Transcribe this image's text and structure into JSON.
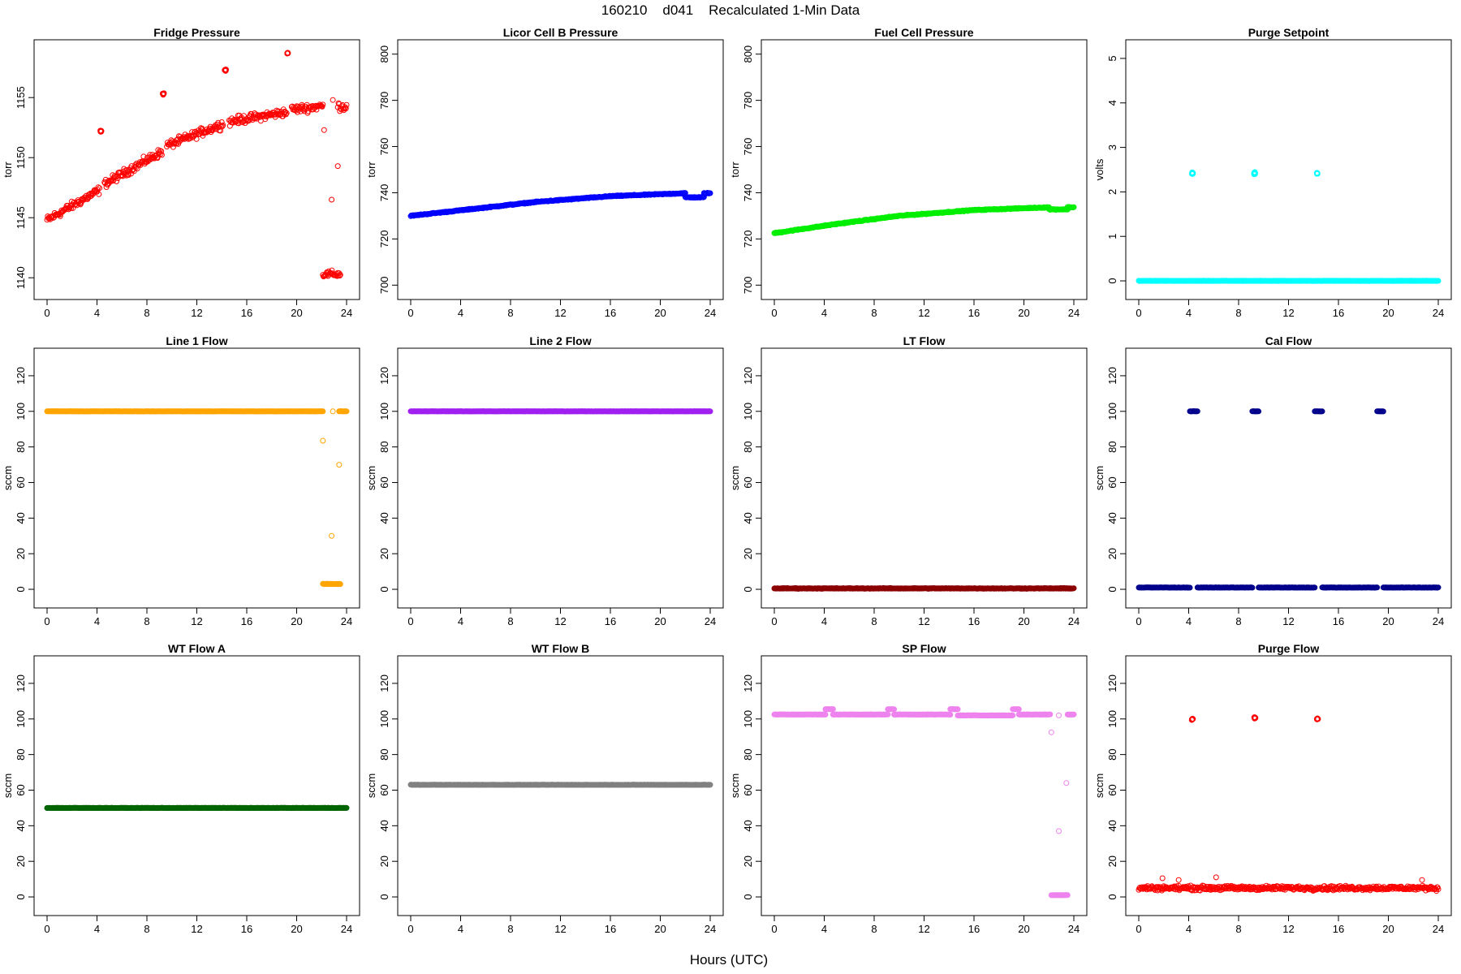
{
  "figure": {
    "title": "160210    d041    Recalculated 1-Min Data",
    "xlabel": "Hours (UTC)"
  },
  "chart_data": [
    {
      "type": "scatter",
      "title": "Fridge Pressure",
      "ylabel": "torr",
      "color": "#ff0000",
      "xlim": [
        0,
        24
      ],
      "ylim": [
        1139,
        1159
      ],
      "xticks": [
        0,
        4,
        8,
        12,
        16,
        20,
        24
      ],
      "yticks": [
        1140,
        1145,
        1150,
        1155
      ],
      "segments": [
        {
          "x": [
            0,
            4.2
          ],
          "y": [
            1144.8,
            1147.3
          ],
          "jitter": 0.5
        },
        {
          "x": [
            4.6,
            9.2
          ],
          "y": [
            1147.8,
            1150.5
          ],
          "jitter": 0.5
        },
        {
          "x": [
            9.6,
            14.1
          ],
          "y": [
            1151,
            1152.8
          ],
          "jitter": 0.5
        },
        {
          "x": [
            14.6,
            19.2
          ],
          "y": [
            1153,
            1153.8
          ],
          "jitter": 0.5
        },
        {
          "x": [
            19.6,
            22.1
          ],
          "y": [
            1154,
            1154.3
          ],
          "jitter": 0.5
        },
        {
          "x": [
            23.3,
            24
          ],
          "y": [
            1154.3,
            1154.2
          ],
          "jitter": 0.5
        },
        {
          "x": [
            22.1,
            23.5
          ],
          "y": [
            1140.3,
            1140.3
          ],
          "jitter": 0.4
        }
      ],
      "clusters": [
        {
          "x": 4.3,
          "y": 1152.2,
          "n": 10
        },
        {
          "x": 9.3,
          "y": 1155.3,
          "n": 10
        },
        {
          "x": 14.3,
          "y": 1157.3,
          "n": 10
        },
        {
          "x": 19.3,
          "y": 1158.7,
          "n": 8
        }
      ],
      "points": [
        [
          22.2,
          1152.3
        ],
        [
          22.8,
          1146.5
        ],
        [
          23.3,
          1149.3
        ],
        [
          22.9,
          1154.8
        ]
      ]
    },
    {
      "type": "scatter",
      "title": "Licor Cell B Pressure",
      "ylabel": "torr",
      "color": "#0000ff",
      "xlim": [
        0,
        24
      ],
      "ylim": [
        698,
        802
      ],
      "xticks": [
        0,
        4,
        8,
        12,
        16,
        20,
        24
      ],
      "yticks": [
        700,
        720,
        740,
        760,
        780,
        800
      ],
      "segments": [
        {
          "x": [
            0,
            5
          ],
          "y": [
            730,
            733
          ],
          "jitter": 0.3
        },
        {
          "x": [
            5,
            10
          ],
          "y": [
            733,
            736
          ],
          "jitter": 0.3
        },
        {
          "x": [
            10,
            16
          ],
          "y": [
            736,
            738.5
          ],
          "jitter": 0.3
        },
        {
          "x": [
            16,
            22
          ],
          "y": [
            738.5,
            739.8
          ],
          "jitter": 0.3
        },
        {
          "x": [
            22,
            23.5
          ],
          "y": [
            738,
            738
          ],
          "jitter": 0.3
        },
        {
          "x": [
            23.5,
            24
          ],
          "y": [
            739.8,
            739.8
          ],
          "jitter": 0.3
        }
      ],
      "clusters": [],
      "points": []
    },
    {
      "type": "scatter",
      "title": "Fuel Cell Pressure",
      "ylabel": "torr",
      "color": "#00ee00",
      "xlim": [
        0,
        24
      ],
      "ylim": [
        698,
        802
      ],
      "xticks": [
        0,
        4,
        8,
        12,
        16,
        20,
        24
      ],
      "yticks": [
        700,
        720,
        740,
        760,
        780,
        800
      ],
      "segments": [
        {
          "x": [
            0,
            5
          ],
          "y": [
            722.5,
            726.5
          ],
          "jitter": 0.3
        },
        {
          "x": [
            5,
            10
          ],
          "y": [
            726.5,
            730
          ],
          "jitter": 0.3
        },
        {
          "x": [
            10,
            16
          ],
          "y": [
            730,
            732.5
          ],
          "jitter": 0.3
        },
        {
          "x": [
            16,
            22
          ],
          "y": [
            732.5,
            733.7
          ],
          "jitter": 0.3
        },
        {
          "x": [
            22,
            23.5
          ],
          "y": [
            732.8,
            732.8
          ],
          "jitter": 0.3
        },
        {
          "x": [
            23.5,
            24
          ],
          "y": [
            733.7,
            733.7
          ],
          "jitter": 0.3
        }
      ],
      "clusters": [],
      "points": []
    },
    {
      "type": "scatter",
      "title": "Purge Setpoint",
      "ylabel": "volts",
      "color": "#00ffff",
      "xlim": [
        0,
        24
      ],
      "ylim": [
        -0.2,
        5.2
      ],
      "xticks": [
        0,
        4,
        8,
        12,
        16,
        20,
        24
      ],
      "yticks": [
        0,
        1,
        2,
        3,
        4,
        5
      ],
      "segments": [
        {
          "x": [
            0,
            24
          ],
          "y": [
            0,
            0
          ],
          "jitter": 0.005
        }
      ],
      "clusters": [
        {
          "x": 4.3,
          "y": 2.42,
          "n": 12
        },
        {
          "x": 9.3,
          "y": 2.42,
          "n": 10
        },
        {
          "x": 14.3,
          "y": 2.42,
          "n": 12
        }
      ],
      "points": []
    },
    {
      "type": "scatter",
      "title": "Line 1 Flow",
      "ylabel": "sccm",
      "color": "#ffa500",
      "xlim": [
        0,
        24
      ],
      "ylim": [
        -5,
        130
      ],
      "xticks": [
        0,
        4,
        8,
        12,
        16,
        20,
        24
      ],
      "yticks": [
        0,
        20,
        40,
        60,
        80,
        100,
        120
      ],
      "segments": [
        {
          "x": [
            0,
            22.1
          ],
          "y": [
            100,
            100
          ],
          "jitter": 0.1
        },
        {
          "x": [
            23.4,
            24
          ],
          "y": [
            100,
            100
          ],
          "jitter": 0.1
        },
        {
          "x": [
            22.1,
            23.5
          ],
          "y": [
            3,
            3
          ],
          "jitter": 0.2
        }
      ],
      "clusters": [],
      "points": [
        [
          22.1,
          83.5
        ],
        [
          23.4,
          70
        ],
        [
          22.8,
          30
        ],
        [
          22.9,
          100
        ]
      ]
    },
    {
      "type": "scatter",
      "title": "Line 2 Flow",
      "ylabel": "sccm",
      "color": "#a020f0",
      "xlim": [
        0,
        24
      ],
      "ylim": [
        -5,
        130
      ],
      "xticks": [
        0,
        4,
        8,
        12,
        16,
        20,
        24
      ],
      "yticks": [
        0,
        20,
        40,
        60,
        80,
        100,
        120
      ],
      "segments": [
        {
          "x": [
            0,
            24
          ],
          "y": [
            100,
            100
          ],
          "jitter": 0.1
        }
      ],
      "clusters": [],
      "points": []
    },
    {
      "type": "scatter",
      "title": "LT Flow",
      "ylabel": "sccm",
      "color": "#8b0000",
      "xlim": [
        0,
        24
      ],
      "ylim": [
        -5,
        130
      ],
      "xticks": [
        0,
        4,
        8,
        12,
        16,
        20,
        24
      ],
      "yticks": [
        0,
        20,
        40,
        60,
        80,
        100,
        120
      ],
      "segments": [
        {
          "x": [
            0,
            24
          ],
          "y": [
            0.5,
            0.5
          ],
          "jitter": 0.3
        }
      ],
      "clusters": [],
      "points": []
    },
    {
      "type": "scatter",
      "title": "Cal Flow",
      "ylabel": "sccm",
      "color": "#00008b",
      "xlim": [
        0,
        24
      ],
      "ylim": [
        -5,
        130
      ],
      "xticks": [
        0,
        4,
        8,
        12,
        16,
        20,
        24
      ],
      "yticks": [
        0,
        20,
        40,
        60,
        80,
        100,
        120
      ],
      "segments": [
        {
          "x": [
            0,
            4.1
          ],
          "y": [
            1,
            1
          ],
          "jitter": 0.15
        },
        {
          "x": [
            4.7,
            9.1
          ],
          "y": [
            1,
            1
          ],
          "jitter": 0.15
        },
        {
          "x": [
            9.6,
            14.1
          ],
          "y": [
            1,
            1
          ],
          "jitter": 0.15
        },
        {
          "x": [
            14.7,
            19.1
          ],
          "y": [
            1,
            1
          ],
          "jitter": 0.15
        },
        {
          "x": [
            19.6,
            24
          ],
          "y": [
            1,
            1
          ],
          "jitter": 0.15
        },
        {
          "x": [
            4.1,
            4.7
          ],
          "y": [
            100,
            100
          ],
          "jitter": 0.1
        },
        {
          "x": [
            9.1,
            9.6
          ],
          "y": [
            100,
            100
          ],
          "jitter": 0.1
        },
        {
          "x": [
            14.1,
            14.7
          ],
          "y": [
            100,
            100
          ],
          "jitter": 0.1
        },
        {
          "x": [
            19.1,
            19.6
          ],
          "y": [
            100,
            100
          ],
          "jitter": 0.1
        }
      ],
      "clusters": [],
      "points": []
    },
    {
      "type": "scatter",
      "title": "WT Flow A",
      "ylabel": "sccm",
      "color": "#006400",
      "xlim": [
        0,
        24
      ],
      "ylim": [
        -5,
        130
      ],
      "xticks": [
        0,
        4,
        8,
        12,
        16,
        20,
        24
      ],
      "yticks": [
        0,
        20,
        40,
        60,
        80,
        100,
        120
      ],
      "segments": [
        {
          "x": [
            0,
            24
          ],
          "y": [
            50,
            50
          ],
          "jitter": 0.1
        }
      ],
      "clusters": [],
      "points": []
    },
    {
      "type": "scatter",
      "title": "WT Flow B",
      "ylabel": "sccm",
      "color": "#808080",
      "xlim": [
        0,
        24
      ],
      "ylim": [
        -5,
        130
      ],
      "xticks": [
        0,
        4,
        8,
        12,
        16,
        20,
        24
      ],
      "yticks": [
        0,
        20,
        40,
        60,
        80,
        100,
        120
      ],
      "segments": [
        {
          "x": [
            0,
            24
          ],
          "y": [
            63,
            63
          ],
          "jitter": 0.1
        }
      ],
      "clusters": [],
      "points": []
    },
    {
      "type": "scatter",
      "title": "SP Flow",
      "ylabel": "sccm",
      "color": "#ee82ee",
      "xlim": [
        0,
        24
      ],
      "ylim": [
        -5,
        130
      ],
      "xticks": [
        0,
        4,
        8,
        12,
        16,
        20,
        24
      ],
      "yticks": [
        0,
        20,
        40,
        60,
        80,
        100,
        120
      ],
      "segments": [
        {
          "x": [
            0,
            4.1
          ],
          "y": [
            102.5,
            102.5
          ],
          "jitter": 0.15
        },
        {
          "x": [
            4.7,
            9.1
          ],
          "y": [
            102.5,
            102.5
          ],
          "jitter": 0.15
        },
        {
          "x": [
            9.6,
            14.1
          ],
          "y": [
            102.5,
            102.5
          ],
          "jitter": 0.15
        },
        {
          "x": [
            14.7,
            19.1
          ],
          "y": [
            102,
            102
          ],
          "jitter": 0.15
        },
        {
          "x": [
            19.6,
            22.1
          ],
          "y": [
            102.5,
            102.5
          ],
          "jitter": 0.15
        },
        {
          "x": [
            23.5,
            24
          ],
          "y": [
            102.5,
            102.5
          ],
          "jitter": 0.15
        },
        {
          "x": [
            4.1,
            4.7
          ],
          "y": [
            105.5,
            105.5
          ],
          "jitter": 0.1
        },
        {
          "x": [
            9.1,
            9.6
          ],
          "y": [
            105.5,
            105.5
          ],
          "jitter": 0.1
        },
        {
          "x": [
            14.1,
            14.7
          ],
          "y": [
            105.5,
            105.5
          ],
          "jitter": 0.1
        },
        {
          "x": [
            19.1,
            19.6
          ],
          "y": [
            105.5,
            105.5
          ],
          "jitter": 0.1
        },
        {
          "x": [
            22.2,
            23.5
          ],
          "y": [
            1,
            1
          ],
          "jitter": 0.1
        }
      ],
      "clusters": [],
      "points": [
        [
          22.2,
          92.5
        ],
        [
          22.8,
          37
        ],
        [
          23.4,
          64
        ],
        [
          22.8,
          102
        ]
      ]
    },
    {
      "type": "scatter",
      "title": "Purge Flow",
      "ylabel": "sccm",
      "color": "#ff0000",
      "xlim": [
        0,
        24
      ],
      "ylim": [
        -5,
        130
      ],
      "xticks": [
        0,
        4,
        8,
        12,
        16,
        20,
        24
      ],
      "yticks": [
        0,
        20,
        40,
        60,
        80,
        100,
        120
      ],
      "segments": [
        {
          "x": [
            0,
            24
          ],
          "y": [
            5,
            5
          ],
          "jitter": 1.8
        }
      ],
      "clusters": [
        {
          "x": 4.3,
          "y": 100,
          "n": 8
        },
        {
          "x": 9.3,
          "y": 100.5,
          "n": 6
        },
        {
          "x": 14.3,
          "y": 100,
          "n": 8
        }
      ],
      "points": [
        [
          1.9,
          10.5
        ],
        [
          6.2,
          11
        ],
        [
          3.2,
          9.5
        ],
        [
          22.7,
          9.5
        ]
      ]
    }
  ]
}
